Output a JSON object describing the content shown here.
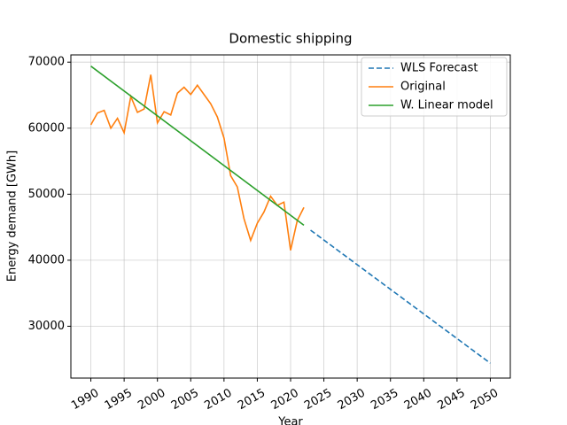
{
  "chart_data": {
    "type": "line",
    "title": "Domestic shipping",
    "xlabel": "Year",
    "ylabel": "Energy demand [GWh]",
    "series": [
      {
        "name": "WLS Forecast",
        "color": "#1f77b4",
        "dashed": true,
        "x": [
          2023,
          2050
        ],
        "values": [
          44550,
          24400
        ]
      },
      {
        "name": "Original",
        "color": "#ff7f0e",
        "dashed": false,
        "x": [
          1990,
          1991,
          1992,
          1993,
          1994,
          1995,
          1996,
          1997,
          1998,
          1999,
          2000,
          2001,
          2002,
          2003,
          2004,
          2005,
          2006,
          2007,
          2008,
          2009,
          2010,
          2011,
          2012,
          2013,
          2014,
          2015,
          2016,
          2017,
          2018,
          2019,
          2020,
          2021,
          2022
        ],
        "values": [
          60500,
          62300,
          62700,
          60000,
          61500,
          59300,
          64800,
          62400,
          62900,
          68100,
          60800,
          62500,
          62000,
          65300,
          66200,
          65100,
          66500,
          65100,
          63700,
          61700,
          58500,
          52800,
          51100,
          46300,
          43000,
          45600,
          47300,
          49700,
          48300,
          48800,
          41500,
          46000,
          48000
        ]
      },
      {
        "name": "W. Linear model",
        "color": "#2ca02c",
        "dashed": false,
        "x": [
          1990,
          2022
        ],
        "values": [
          69400,
          45300
        ]
      }
    ],
    "xlim": [
      1987,
      2053
    ],
    "ylim": [
      22150,
      71100
    ],
    "xticks": [
      1990,
      1995,
      2000,
      2005,
      2010,
      2015,
      2020,
      2025,
      2030,
      2035,
      2040,
      2045,
      2050
    ],
    "yticks": [
      30000,
      40000,
      50000,
      60000,
      70000
    ],
    "grid": true,
    "legend": "upper right"
  }
}
